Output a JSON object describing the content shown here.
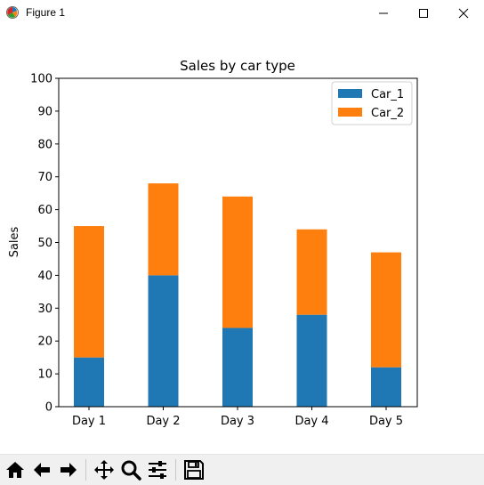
{
  "window": {
    "title": "Figure 1",
    "minimize_glyph": "—",
    "maximize_glyph": "☐",
    "close_glyph": "✕"
  },
  "toolbar": {
    "buttons": [
      {
        "name": "home-icon"
      },
      {
        "name": "back-arrow-icon"
      },
      {
        "name": "forward-arrow-icon"
      },
      {
        "name": "pan-icon"
      },
      {
        "name": "zoom-icon"
      },
      {
        "name": "configure-subplots-icon"
      },
      {
        "name": "save-icon"
      }
    ]
  },
  "chart_data": {
    "type": "bar",
    "stacked": true,
    "title": "Sales by car type",
    "xlabel": "",
    "ylabel": "Sales",
    "categories": [
      "Day 1",
      "Day 2",
      "Day 3",
      "Day 4",
      "Day 5"
    ],
    "series": [
      {
        "name": "Car_1",
        "values": [
          15,
          40,
          24,
          28,
          12
        ],
        "color": "#1f77b4"
      },
      {
        "name": "Car_2",
        "values": [
          40,
          28,
          40,
          26,
          35
        ],
        "color": "#ff7f0e"
      }
    ],
    "ylim": [
      0,
      100
    ],
    "yticks": [
      "0",
      "10",
      "20",
      "30",
      "40",
      "50",
      "60",
      "70",
      "80",
      "90",
      "100"
    ],
    "grid": false,
    "legend_position": "top-right"
  }
}
